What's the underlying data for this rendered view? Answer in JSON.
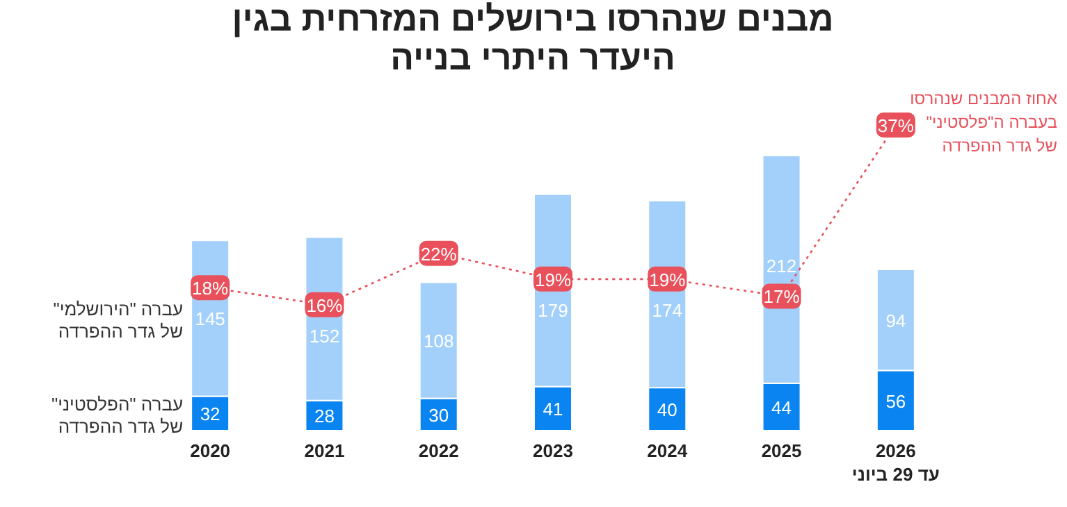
{
  "chart_data": {
    "type": "bar",
    "stacked": true,
    "title": "מבנים שנהרסו בירושלים המזרחית בגין\nהיעדר היתרי בנייה",
    "categories": [
      "2020",
      "2021",
      "2022",
      "2023",
      "2024",
      "2025",
      "2026\nעד 29 ביוני"
    ],
    "data_labels": true,
    "series": [
      {
        "name": "עברה \"הפלסטיני\"\nשל גדר ההפרדה",
        "color": "#0a84f0",
        "values": [
          32,
          28,
          30,
          41,
          40,
          44,
          56
        ]
      },
      {
        "name": "עברה \"הירושלמי\"\nשל גדר ההפרדה",
        "color": "#a3d0fb",
        "values": [
          145,
          152,
          108,
          179,
          174,
          212,
          94
        ]
      },
      {
        "name": "אחוז המבנים שנהרסו\nבעברה ה\"פלסטיני\"\nשל גדר ההפרדה",
        "type": "line",
        "axis": "y2",
        "color": "#e8505b",
        "line_style": "dotted",
        "marker": "square",
        "values": [
          18,
          16,
          22,
          19,
          19,
          17,
          37
        ],
        "value_labels": [
          "18%",
          "16%",
          "22%",
          "19%",
          "19%",
          "17%",
          "37%"
        ]
      }
    ]
  }
}
